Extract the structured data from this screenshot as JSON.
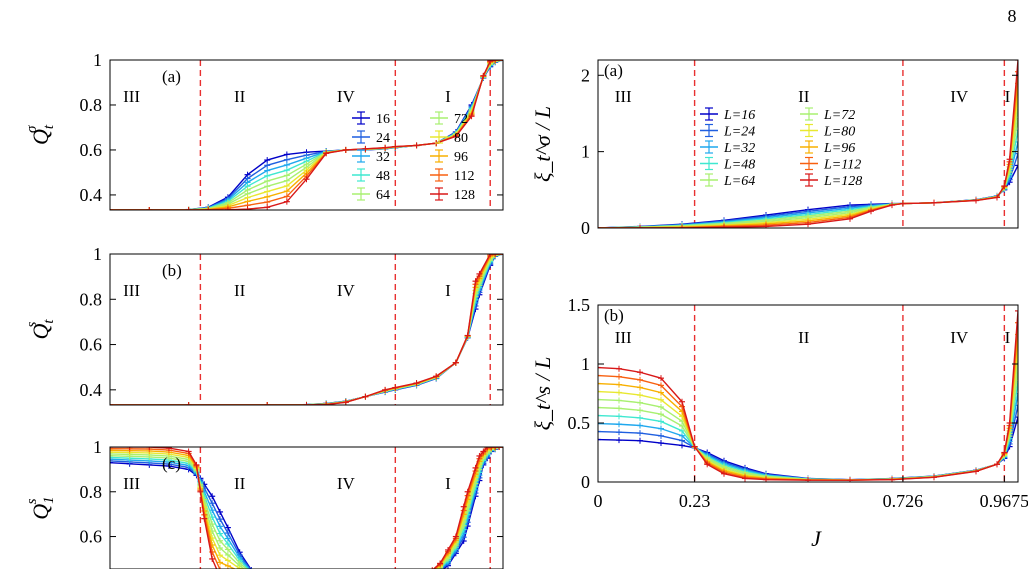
{
  "page_number": "8",
  "colors": [
    "#0000c8",
    "#1f5fe0",
    "#1fa8ee",
    "#3fe8d0",
    "#a8f070",
    "#e8e830",
    "#f8b000",
    "#f86010",
    "#d81818"
  ],
  "regions_style": {
    "line_color": "#e83030",
    "dash": "dashed"
  },
  "chart_data": [
    {
      "id": "left-a",
      "type": "line",
      "ylabel": "Q_t^σ",
      "ylabel_base": "Q",
      "ylabel_sub": "t",
      "ylabel_sup": "σ",
      "ylim": [
        0.333,
        1.0
      ],
      "yticks": [
        0.4,
        0.6,
        0.8,
        1
      ],
      "ytick_labels": [
        "0.4",
        "0.6",
        "0.8",
        "1"
      ],
      "xlim": [
        0,
        1.0
      ],
      "panel_label": "(a)",
      "regions": [
        {
          "label": "III",
          "x": 0.055
        },
        {
          "label": "II",
          "x": 0.33
        },
        {
          "label": "IV",
          "x": 0.6
        },
        {
          "label": "I",
          "x": 0.86
        }
      ],
      "boundaries": [
        0.23,
        0.726,
        0.9675
      ],
      "legend": [
        "16",
        "24",
        "32",
        "48",
        "64",
        "72",
        "80",
        "96",
        "112",
        "128"
      ],
      "series": [
        {
          "name": "16",
          "x": [
            0,
            0.1,
            0.2,
            0.25,
            0.3,
            0.35,
            0.4,
            0.45,
            0.5,
            0.55,
            0.6,
            0.65,
            0.7,
            0.726,
            0.78,
            0.83,
            0.88,
            0.92,
            0.95,
            0.9675,
            0.98,
            1.0
          ],
          "y": [
            0.333,
            0.333,
            0.335,
            0.345,
            0.39,
            0.49,
            0.555,
            0.58,
            0.59,
            0.595,
            0.6,
            0.6,
            0.605,
            0.61,
            0.62,
            0.63,
            0.68,
            0.8,
            0.92,
            0.97,
            0.99,
            1.0
          ]
        },
        {
          "name": "128",
          "x": [
            0,
            0.1,
            0.2,
            0.25,
            0.3,
            0.35,
            0.4,
            0.45,
            0.5,
            0.55,
            0.6,
            0.65,
            0.7,
            0.726,
            0.78,
            0.83,
            0.88,
            0.92,
            0.95,
            0.9675,
            0.98,
            1.0
          ],
          "y": [
            0.333,
            0.333,
            0.333,
            0.333,
            0.334,
            0.337,
            0.345,
            0.37,
            0.47,
            0.585,
            0.6,
            0.605,
            0.61,
            0.615,
            0.62,
            0.63,
            0.66,
            0.75,
            0.93,
            0.995,
            1.0,
            1.0
          ]
        }
      ]
    },
    {
      "id": "left-b",
      "type": "line",
      "ylabel": "Q_t^s",
      "ylabel_base": "Q",
      "ylabel_sub": "t",
      "ylabel_sup": "s",
      "ylim": [
        0.333,
        1.0
      ],
      "yticks": [
        0.4,
        0.6,
        0.8,
        1
      ],
      "ytick_labels": [
        "0.4",
        "0.6",
        "0.8",
        "1"
      ],
      "xlim": [
        0,
        1.0
      ],
      "panel_label": "(b)",
      "regions": [
        {
          "label": "III",
          "x": 0.055
        },
        {
          "label": "II",
          "x": 0.33
        },
        {
          "label": "IV",
          "x": 0.6
        },
        {
          "label": "I",
          "x": 0.86
        }
      ],
      "boundaries": [
        0.23,
        0.726,
        0.9675
      ],
      "series": [
        {
          "name": "16",
          "x": [
            0,
            0.2,
            0.4,
            0.5,
            0.55,
            0.6,
            0.65,
            0.7,
            0.726,
            0.78,
            0.83,
            0.88,
            0.91,
            0.94,
            0.9675,
            0.98,
            1.0
          ],
          "y": [
            0.333,
            0.333,
            0.333,
            0.335,
            0.34,
            0.35,
            0.37,
            0.39,
            0.4,
            0.42,
            0.45,
            0.52,
            0.63,
            0.82,
            0.95,
            0.99,
            1.0
          ]
        },
        {
          "name": "128",
          "x": [
            0,
            0.2,
            0.4,
            0.5,
            0.55,
            0.6,
            0.65,
            0.7,
            0.726,
            0.78,
            0.83,
            0.88,
            0.91,
            0.93,
            0.9675,
            0.98,
            1.0
          ],
          "y": [
            0.333,
            0.333,
            0.333,
            0.333,
            0.335,
            0.345,
            0.37,
            0.4,
            0.41,
            0.43,
            0.46,
            0.52,
            0.64,
            0.88,
            1.0,
            1.0,
            1.0
          ]
        }
      ]
    },
    {
      "id": "left-c",
      "type": "line",
      "ylabel": "Q_1^s",
      "ylabel_base": "Q",
      "ylabel_sub": "1",
      "ylabel_sup": "s",
      "ylim": [
        0.455,
        1.0
      ],
      "yticks": [
        0.6,
        0.8,
        1
      ],
      "ytick_labels": [
        "0.6",
        "0.8",
        "1"
      ],
      "xlim": [
        0,
        1.0
      ],
      "panel_label": "(c)",
      "regions": [
        {
          "label": "III",
          "x": 0.055
        },
        {
          "label": "II",
          "x": 0.33
        },
        {
          "label": "IV",
          "x": 0.6
        },
        {
          "label": "I",
          "x": 0.86
        }
      ],
      "boundaries": [
        0.23,
        0.726,
        0.9675
      ],
      "series": [
        {
          "name": "16",
          "x": [
            0,
            0.05,
            0.1,
            0.15,
            0.2,
            0.23,
            0.26,
            0.3,
            0.33,
            0.36,
            0.4
          ],
          "y": [
            0.93,
            0.925,
            0.92,
            0.915,
            0.9,
            0.86,
            0.78,
            0.64,
            0.53,
            0.45,
            0.4
          ]
        },
        {
          "name": "128",
          "x": [
            0,
            0.05,
            0.1,
            0.15,
            0.2,
            0.22,
            0.24,
            0.26,
            0.28
          ],
          "y": [
            1.0,
            1.0,
            1.0,
            0.995,
            0.98,
            0.92,
            0.68,
            0.5,
            0.42
          ]
        }
      ],
      "series_right": [
        {
          "name": "16",
          "x": [
            0.82,
            0.86,
            0.9,
            0.93,
            0.95,
            0.97,
            0.99,
            1.0
          ],
          "y": [
            0.42,
            0.47,
            0.58,
            0.78,
            0.92,
            0.98,
            1.0,
            1.0
          ]
        },
        {
          "name": "128",
          "x": [
            0.8,
            0.84,
            0.88,
            0.91,
            0.94,
            0.96,
            0.98,
            1.0
          ],
          "y": [
            0.42,
            0.48,
            0.6,
            0.8,
            0.96,
            1.0,
            1.0,
            1.0
          ]
        }
      ]
    },
    {
      "id": "right-a",
      "type": "line",
      "ylabel": "ξ_t^σ / L",
      "ylim": [
        0,
        2.2
      ],
      "yticks": [
        0,
        1,
        2
      ],
      "ytick_labels": [
        "0",
        "1",
        "2"
      ],
      "xlim": [
        0,
        1.0
      ],
      "panel_label": "(a)",
      "regions": [
        {
          "label": "III",
          "x": 0.06
        },
        {
          "label": "II",
          "x": 0.49
        },
        {
          "label": "IV",
          "x": 0.86
        },
        {
          "label": "I",
          "x": 0.975
        }
      ],
      "boundaries": [
        0.23,
        0.726,
        0.9675
      ],
      "legend": [
        "L=16",
        "L=24",
        "L=32",
        "L=48",
        "L=64",
        "L=72",
        "L=80",
        "L=96",
        "L=112",
        "L=128"
      ],
      "series": [
        {
          "name": "L=16",
          "x": [
            0,
            0.1,
            0.2,
            0.3,
            0.4,
            0.5,
            0.6,
            0.7,
            0.726,
            0.8,
            0.9,
            0.95,
            0.9675,
            0.98,
            1.0
          ],
          "y": [
            0.0,
            0.02,
            0.05,
            0.1,
            0.17,
            0.24,
            0.3,
            0.32,
            0.32,
            0.33,
            0.37,
            0.42,
            0.5,
            0.6,
            0.82
          ]
        },
        {
          "name": "L=128",
          "x": [
            0,
            0.1,
            0.2,
            0.3,
            0.4,
            0.5,
            0.6,
            0.65,
            0.7,
            0.726,
            0.8,
            0.9,
            0.95,
            0.9675,
            0.98,
            1.0
          ],
          "y": [
            0.0,
            0.0,
            0.0,
            0.01,
            0.02,
            0.05,
            0.12,
            0.22,
            0.3,
            0.32,
            0.33,
            0.36,
            0.4,
            0.55,
            0.9,
            2.2
          ]
        }
      ]
    },
    {
      "id": "right-b",
      "type": "line",
      "ylabel": "ξ_t^s / L",
      "xlabel": "J",
      "ylim": [
        0,
        1.5
      ],
      "yticks": [
        0,
        0.5,
        1,
        1.5
      ],
      "ytick_labels": [
        "0",
        "0.5",
        "1",
        "1.5"
      ],
      "xlim": [
        0,
        1.0
      ],
      "xticks": [
        0,
        0.23,
        0.726,
        0.9675
      ],
      "xtick_labels": [
        "0",
        "0.23",
        "0.726",
        "0.9675"
      ],
      "panel_label": "(b)",
      "regions": [
        {
          "label": "III",
          "x": 0.06
        },
        {
          "label": "II",
          "x": 0.49
        },
        {
          "label": "IV",
          "x": 0.86
        },
        {
          "label": "I",
          "x": 0.975
        }
      ],
      "boundaries": [
        0.23,
        0.726,
        0.9675
      ],
      "series": [
        {
          "name": "L=16",
          "x": [
            0,
            0.1,
            0.15,
            0.2,
            0.23,
            0.26,
            0.3,
            0.35,
            0.4,
            0.5,
            0.6,
            0.7,
            0.8,
            0.9,
            0.95,
            0.9675,
            0.98,
            1.0
          ],
          "y": [
            0.36,
            0.35,
            0.33,
            0.31,
            0.29,
            0.25,
            0.18,
            0.12,
            0.07,
            0.03,
            0.02,
            0.03,
            0.05,
            0.1,
            0.15,
            0.2,
            0.3,
            0.55
          ]
        },
        {
          "name": "L=128",
          "x": [
            0,
            0.05,
            0.1,
            0.15,
            0.2,
            0.23,
            0.26,
            0.3,
            0.35,
            0.4,
            0.5,
            0.6,
            0.7,
            0.8,
            0.9,
            0.95,
            0.9675,
            0.98,
            1.0
          ],
          "y": [
            0.97,
            0.96,
            0.93,
            0.88,
            0.68,
            0.3,
            0.15,
            0.07,
            0.03,
            0.02,
            0.015,
            0.015,
            0.02,
            0.04,
            0.09,
            0.15,
            0.25,
            0.5,
            1.45
          ]
        }
      ]
    }
  ]
}
